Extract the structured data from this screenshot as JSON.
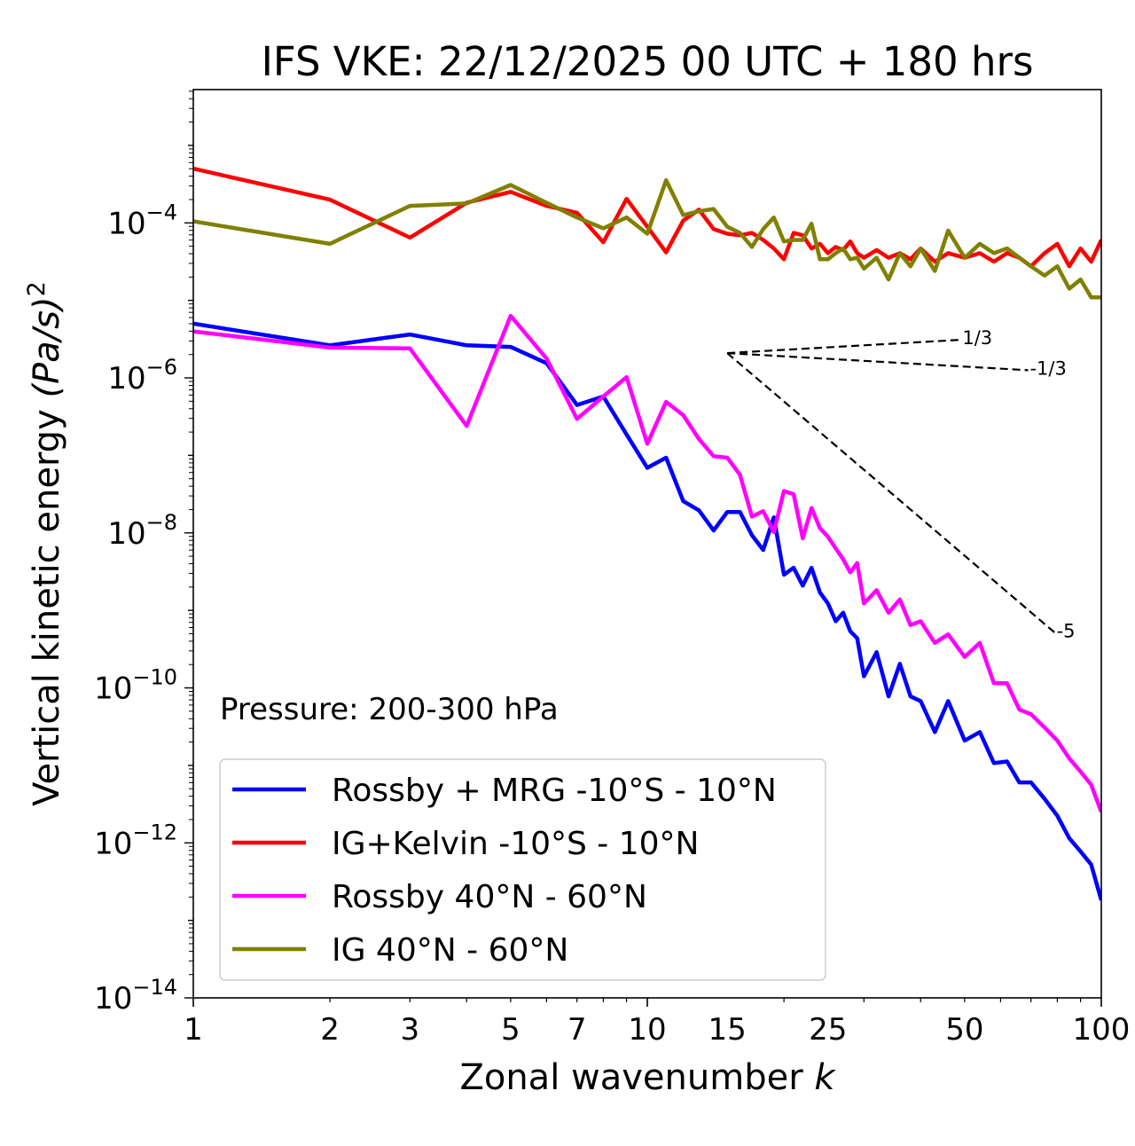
{
  "chart_data": {
    "type": "line",
    "title": "IFS VKE: 22/12/2025 00 UTC + 180 hrs",
    "xlabel": "Zonal wavenumber",
    "xlabel_italic": "k",
    "ylabel": "Vertical kinetic energy",
    "ylabel_unit": "(Pa/s)",
    "ylabel_unit_power": "2",
    "xscale": "log",
    "yscale": "log",
    "xlim": [
      1,
      100
    ],
    "ylim_log10": [
      -14,
      -2.28
    ],
    "x_tick_labels": [
      "1",
      "2",
      "3",
      "5",
      "7",
      "10",
      "15",
      "25",
      "50",
      "100"
    ],
    "x_tick_values": [
      1,
      2,
      3,
      5,
      7,
      10,
      15,
      25,
      50,
      100
    ],
    "y_tick_labels": [
      {
        "base": "10",
        "exp": "−14",
        "log10": -14
      },
      {
        "base": "10",
        "exp": "−12",
        "log10": -12
      },
      {
        "base": "10",
        "exp": "−10",
        "log10": -10
      },
      {
        "base": "10",
        "exp": "−8",
        "log10": -8
      },
      {
        "base": "10",
        "exp": "−6",
        "log10": -6
      },
      {
        "base": "10",
        "exp": "−4",
        "log10": -4
      }
    ],
    "annotation": "Pressure: 200-300 hPa",
    "legend_placement": "lower-left",
    "x": [
      1,
      2,
      3,
      4,
      5,
      6,
      7,
      8,
      9,
      10,
      11,
      12,
      13,
      14,
      15,
      16,
      17,
      18,
      19,
      20,
      21,
      22,
      23,
      24,
      25,
      26,
      27,
      28,
      29,
      30,
      32,
      34,
      36,
      38,
      40,
      43,
      46,
      50,
      54,
      58,
      62,
      66,
      70,
      75,
      80,
      85,
      90,
      95,
      100
    ],
    "series": [
      {
        "name": "Rossby + MRG -10°S - 10°N",
        "color": "#0000ff",
        "log10_values": [
          -5.3,
          -5.58,
          -5.44,
          -5.58,
          -5.6,
          -5.81,
          -6.35,
          -6.24,
          -6.73,
          -7.16,
          -7.03,
          -7.59,
          -7.71,
          -7.97,
          -7.73,
          -7.73,
          -8.03,
          -8.22,
          -7.8,
          -8.54,
          -8.45,
          -8.68,
          -8.45,
          -8.77,
          -8.91,
          -9.14,
          -9.03,
          -9.27,
          -9.36,
          -9.85,
          -9.54,
          -10.11,
          -9.69,
          -10.11,
          -10.17,
          -10.57,
          -10.17,
          -10.68,
          -10.57,
          -10.97,
          -10.95,
          -11.22,
          -11.22,
          -11.43,
          -11.65,
          -11.94,
          -12.11,
          -12.28,
          -12.74
        ]
      },
      {
        "name": "IG+Kelvin -10°S - 10°N",
        "color": "#ff0000",
        "log10_values": [
          -3.3,
          -3.7,
          -4.19,
          -3.74,
          -3.6,
          -3.78,
          -3.87,
          -4.25,
          -3.69,
          -4.05,
          -4.38,
          -3.97,
          -3.83,
          -4.08,
          -4.14,
          -4.16,
          -4.13,
          -4.22,
          -4.33,
          -4.47,
          -4.13,
          -4.16,
          -4.33,
          -4.27,
          -4.39,
          -4.31,
          -4.35,
          -4.24,
          -4.39,
          -4.45,
          -4.35,
          -4.45,
          -4.39,
          -4.47,
          -4.33,
          -4.5,
          -4.39,
          -4.45,
          -4.39,
          -4.5,
          -4.39,
          -4.45,
          -4.56,
          -4.39,
          -4.27,
          -4.56,
          -4.33,
          -4.5,
          -4.22
        ]
      },
      {
        "name": "Rossby 40°N - 60°N",
        "color": "#ff00ff",
        "log10_values": [
          -5.4,
          -5.61,
          -5.62,
          -6.62,
          -5.2,
          -5.75,
          -6.53,
          -6.24,
          -5.99,
          -6.85,
          -6.31,
          -6.48,
          -6.79,
          -7.01,
          -7.03,
          -7.25,
          -7.79,
          -7.72,
          -7.99,
          -7.46,
          -7.5,
          -8.07,
          -7.68,
          -7.94,
          -8.05,
          -8.2,
          -8.34,
          -8.51,
          -8.39,
          -8.91,
          -8.74,
          -9.03,
          -8.86,
          -9.19,
          -9.14,
          -9.42,
          -9.31,
          -9.6,
          -9.42,
          -9.94,
          -9.94,
          -10.28,
          -10.34,
          -10.51,
          -10.68,
          -10.91,
          -11.08,
          -11.25,
          -11.6
        ]
      },
      {
        "name": "IG 40°N - 60°N",
        "color": "#808000",
        "log10_values": [
          -3.98,
          -4.27,
          -3.78,
          -3.75,
          -3.51,
          -3.74,
          -3.93,
          -4.07,
          -3.93,
          -4.14,
          -3.45,
          -3.9,
          -3.85,
          -3.82,
          -4.05,
          -4.13,
          -4.31,
          -4.08,
          -3.93,
          -4.24,
          -4.22,
          -4.22,
          -4.01,
          -4.47,
          -4.47,
          -4.39,
          -4.33,
          -4.47,
          -4.45,
          -4.59,
          -4.45,
          -4.73,
          -4.39,
          -4.56,
          -4.33,
          -4.62,
          -4.1,
          -4.45,
          -4.27,
          -4.39,
          -4.33,
          -4.45,
          -4.56,
          -4.68,
          -4.56,
          -4.85,
          -4.73,
          -4.96,
          -4.96
        ]
      }
    ],
    "reference_slopes": [
      {
        "label": "1/3",
        "slope": 0.3333,
        "k_start": 15,
        "k_end": 49,
        "log10_start": -5.68
      },
      {
        "label": "-1/3",
        "slope": -0.3333,
        "k_start": 15,
        "k_end": 69,
        "log10_start": -5.68
      },
      {
        "label": "-5",
        "slope": -5,
        "k_start": 15,
        "k_end": 79,
        "log10_start": -5.68
      }
    ]
  }
}
